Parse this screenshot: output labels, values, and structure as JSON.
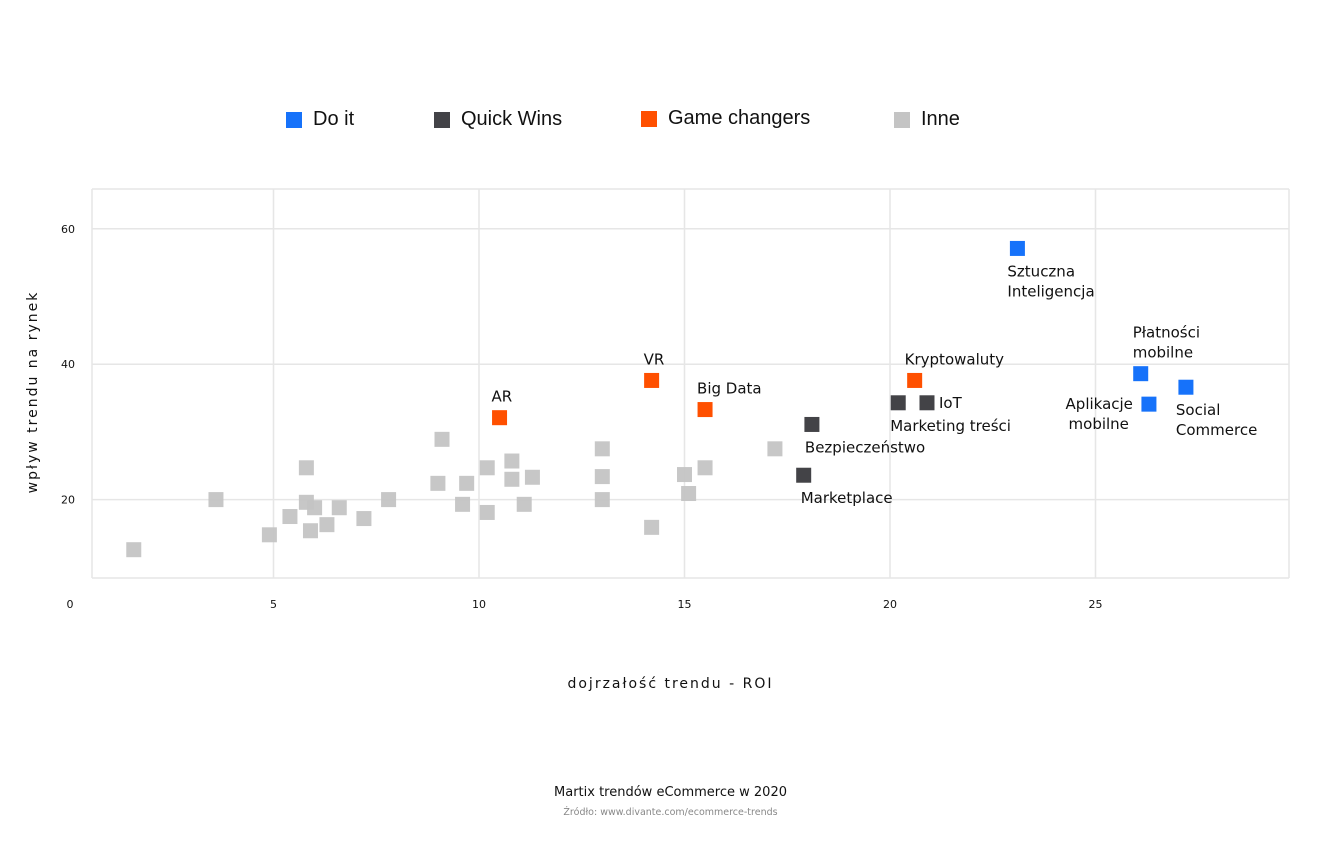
{
  "chart_data": {
    "type": "scatter",
    "title": "Martix trendów eCommerce w 2020",
    "source": "Źródło: www.divante.com/ecommerce-trends",
    "xlabel": "dojrzałość trendu - ROI",
    "ylabel": "wpływ trendu na rynek",
    "xlim": [
      0,
      29
    ],
    "ylim": [
      0,
      66
    ],
    "x_ticks": [
      "0",
      "5",
      "10",
      "15",
      "20",
      "25"
    ],
    "y_ticks": [
      "0",
      "20",
      "40",
      "60"
    ],
    "grid": true,
    "legend_position": "top",
    "legend": [
      {
        "name": "Do it",
        "color": "#1672fa"
      },
      {
        "name": "Quick Wins",
        "color": "#434347"
      },
      {
        "name": "Game changers",
        "color": "#ff5000"
      },
      {
        "name": "Inne",
        "color": "#c4c4c4"
      }
    ],
    "series": [
      {
        "name": "Do it",
        "color": "#1672fa",
        "points": [
          {
            "x": 23.1,
            "y": 57.1,
            "label": [
              "Sztuczna",
              "Inteligencja"
            ],
            "label_pos": "below"
          },
          {
            "x": 26.1,
            "y": 38.6,
            "label": [
              "Płatności",
              "mobilne"
            ],
            "label_pos": "above"
          },
          {
            "x": 26.3,
            "y": 34.1,
            "label": [
              "Aplikacje",
              "mobilne"
            ],
            "label_pos": "left"
          },
          {
            "x": 27.2,
            "y": 36.6,
            "label": [
              "Social",
              "Commerce"
            ],
            "label_pos": "below"
          }
        ]
      },
      {
        "name": "Quick Wins",
        "color": "#434347",
        "points": [
          {
            "x": 18.1,
            "y": 31.1,
            "label": [
              "Bezpieczeństwo"
            ],
            "label_pos": "below"
          },
          {
            "x": 17.9,
            "y": 23.6,
            "label": [
              "Marketplace"
            ],
            "label_pos": "below"
          },
          {
            "x": 20.2,
            "y": 34.3,
            "label": [
              "Marketing treści"
            ],
            "label_pos": "below"
          },
          {
            "x": 20.9,
            "y": 34.3,
            "label": [
              "IoT"
            ],
            "label_pos": "right"
          }
        ]
      },
      {
        "name": "Game changers",
        "color": "#ff5000",
        "points": [
          {
            "x": 10.5,
            "y": 32.1,
            "label": [
              "AR"
            ],
            "label_pos": "above"
          },
          {
            "x": 14.2,
            "y": 37.6,
            "label": [
              "VR"
            ],
            "label_pos": "above"
          },
          {
            "x": 15.5,
            "y": 33.3,
            "label": [
              "Big Data"
            ],
            "label_pos": "above"
          },
          {
            "x": 20.6,
            "y": 37.6,
            "label": [
              "Kryptowaluty"
            ],
            "label_pos": "above"
          }
        ]
      },
      {
        "name": "Inne",
        "color": "#c4c4c4",
        "points": [
          {
            "x": 1.6,
            "y": 12.6
          },
          {
            "x": 3.6,
            "y": 20.0
          },
          {
            "x": 4.9,
            "y": 14.8
          },
          {
            "x": 5.4,
            "y": 17.5
          },
          {
            "x": 5.8,
            "y": 24.7
          },
          {
            "x": 5.8,
            "y": 19.6
          },
          {
            "x": 5.9,
            "y": 15.4
          },
          {
            "x": 6.0,
            "y": 18.8
          },
          {
            "x": 6.3,
            "y": 16.3
          },
          {
            "x": 6.6,
            "y": 18.8
          },
          {
            "x": 7.2,
            "y": 17.2
          },
          {
            "x": 7.8,
            "y": 20.0
          },
          {
            "x": 9.0,
            "y": 22.4
          },
          {
            "x": 9.1,
            "y": 28.9
          },
          {
            "x": 9.6,
            "y": 19.3
          },
          {
            "x": 9.7,
            "y": 22.4
          },
          {
            "x": 10.2,
            "y": 24.7
          },
          {
            "x": 10.2,
            "y": 18.1
          },
          {
            "x": 10.8,
            "y": 25.7
          },
          {
            "x": 10.8,
            "y": 23.0
          },
          {
            "x": 11.1,
            "y": 19.3
          },
          {
            "x": 11.3,
            "y": 23.3
          },
          {
            "x": 13.0,
            "y": 27.5
          },
          {
            "x": 13.0,
            "y": 23.4
          },
          {
            "x": 13.0,
            "y": 20.0
          },
          {
            "x": 14.2,
            "y": 15.9
          },
          {
            "x": 15.0,
            "y": 23.7
          },
          {
            "x": 15.1,
            "y": 20.9
          },
          {
            "x": 15.5,
            "y": 24.7
          },
          {
            "x": 17.2,
            "y": 27.5
          }
        ]
      }
    ]
  }
}
